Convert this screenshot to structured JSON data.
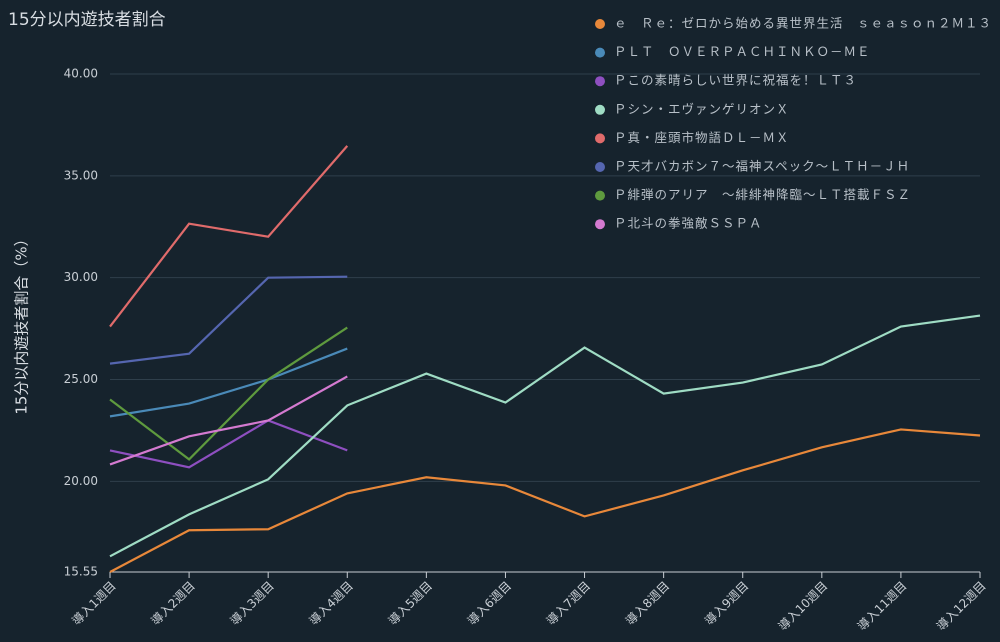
{
  "chart_data": {
    "type": "line",
    "title": "15分以内遊技者割合",
    "y_label": "15分以内遊技者割合（%）",
    "categories": [
      "導入1週目",
      "導入2週目",
      "導入3週目",
      "導入4週目",
      "導入5週目",
      "導入6週目",
      "導入7週目",
      "導入8週目",
      "導入9週目",
      "導入10週目",
      "導入11週目",
      "導入12週目"
    ],
    "series": [
      {
        "name": "ｅ　Ｒｅ：ゼロから始める異世界生活　ｓｅａｓｏｎ２Ｍ１３",
        "color": "#e8883a",
        "values": [
          15.55,
          17.6,
          17.65,
          19.41,
          20.2,
          19.8,
          18.28,
          19.31,
          20.54,
          21.67,
          22.55,
          22.25
        ]
      },
      {
        "name": "ＰＬＴ　ＯＶＥＲＰＡＣＨＩＮＫＯ－ＭＥ",
        "color": "#4a8ab8",
        "values": [
          23.19,
          23.82,
          25.0,
          26.52,
          null,
          null,
          null,
          null,
          null,
          null,
          null,
          null
        ]
      },
      {
        "name": "Ｐこの素晴らしい世界に祝福を！ＬＴ３",
        "color": "#8e4fc0",
        "values": [
          21.52,
          20.69,
          22.99,
          21.52,
          null,
          null,
          null,
          null,
          null,
          null,
          null,
          null
        ]
      },
      {
        "name": "Ｐシン・エヴァンゲリオンＸ",
        "color": "#9fdcc4",
        "values": [
          16.32,
          18.38,
          20.1,
          23.73,
          25.29,
          23.87,
          26.57,
          24.31,
          24.85,
          25.74,
          27.6,
          28.14
        ]
      },
      {
        "name": "Ｐ真・座頭市物語ＤＬ－ＭＸ",
        "color": "#e06b6b",
        "values": [
          27.6,
          32.65,
          32.01,
          36.47,
          null,
          null,
          null,
          null,
          null,
          null,
          null,
          null
        ]
      },
      {
        "name": "Ｐ天才バカボン７～福神スペック～ＬＴＨ－ＪＨ",
        "color": "#5566b0",
        "values": [
          25.78,
          26.27,
          30.0,
          30.05,
          null,
          null,
          null,
          null,
          null,
          null,
          null,
          null
        ]
      },
      {
        "name": "Ｐ緋弾のアリア　～緋緋神降臨～ＬＴ搭載ＦＳＺ",
        "color": "#5e9a3e",
        "values": [
          24.02,
          21.08,
          25.0,
          27.55,
          null,
          null,
          null,
          null,
          null,
          null,
          null,
          null
        ]
      },
      {
        "name": "Ｐ北斗の拳強敵ＳＳＰＡ",
        "color": "#d47ad0",
        "values": [
          20.83,
          22.21,
          22.99,
          25.15,
          null,
          null,
          null,
          null,
          null,
          null,
          null,
          null
        ]
      }
    ],
    "ylim": [
      15.55,
      40
    ],
    "yticks": [
      15.55,
      {
        "value": 20,
        "label": "20.00"
      },
      {
        "value": 25,
        "label": "25.00"
      },
      {
        "value": 30,
        "label": "30.00"
      },
      {
        "value": 35,
        "label": "35.00"
      },
      {
        "value": 40,
        "label": "40.00"
      }
    ],
    "grid": true,
    "legend": "top-right"
  }
}
